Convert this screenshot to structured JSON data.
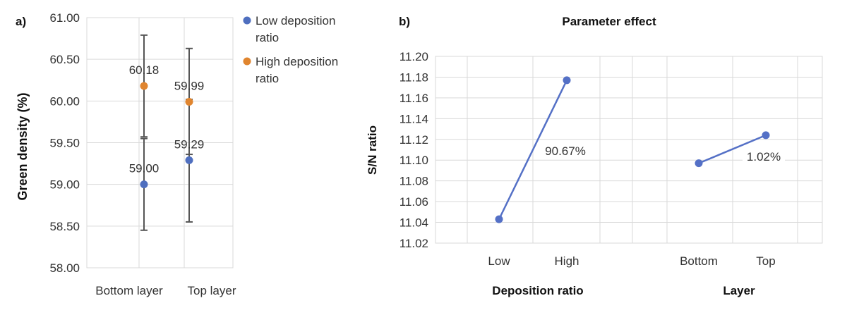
{
  "colors": {
    "low": "#4f6fbf",
    "high": "#e0852f",
    "grid": "#d9d9d9",
    "errorbar": "#555555",
    "line": "#5470c6"
  },
  "chart_data": [
    {
      "panel_label": "a)",
      "type": "scatter",
      "title": "",
      "xlabel": "",
      "ylabel": "Green density (%)",
      "ylim": [
        58.0,
        61.0
      ],
      "yticks": [
        "58.00",
        "58.50",
        "59.00",
        "59.50",
        "60.00",
        "60.50",
        "61.00"
      ],
      "categories": [
        "Bottom layer",
        "Top layer"
      ],
      "grid": true,
      "legend_position": "right",
      "series": [
        {
          "name": "Low deposition ratio",
          "name_lines": [
            "Low deposition",
            "ratio"
          ],
          "color_key": "low",
          "values": [
            59.0,
            59.29
          ],
          "labels": [
            "59.00",
            "59.29"
          ],
          "error_low": [
            58.45,
            58.55
          ],
          "error_high": [
            59.55,
            60.02
          ]
        },
        {
          "name": "High deposition ratio",
          "name_lines": [
            "High deposition",
            "ratio"
          ],
          "color_key": "high",
          "values": [
            60.18,
            59.99
          ],
          "labels": [
            "60.18",
            "59.99"
          ],
          "error_low": [
            59.57,
            59.36
          ],
          "error_high": [
            60.79,
            60.63
          ]
        }
      ]
    },
    {
      "panel_label": "b)",
      "type": "line",
      "title": "Parameter effect",
      "ylabel": "S/N ratio",
      "ylim": [
        11.02,
        11.2
      ],
      "yticks": [
        "11.02",
        "11.04",
        "11.06",
        "11.08",
        "11.10",
        "11.12",
        "11.14",
        "11.16",
        "11.18",
        "11.20"
      ],
      "grid": true,
      "groups": [
        {
          "name": "Deposition ratio",
          "categories": [
            "Low",
            "High"
          ],
          "values": [
            11.043,
            11.177
          ],
          "annotation": "90.67%"
        },
        {
          "name": "Layer",
          "categories": [
            "Bottom",
            "Top"
          ],
          "values": [
            11.097,
            11.124
          ],
          "annotation": "1.02%"
        }
      ]
    }
  ]
}
